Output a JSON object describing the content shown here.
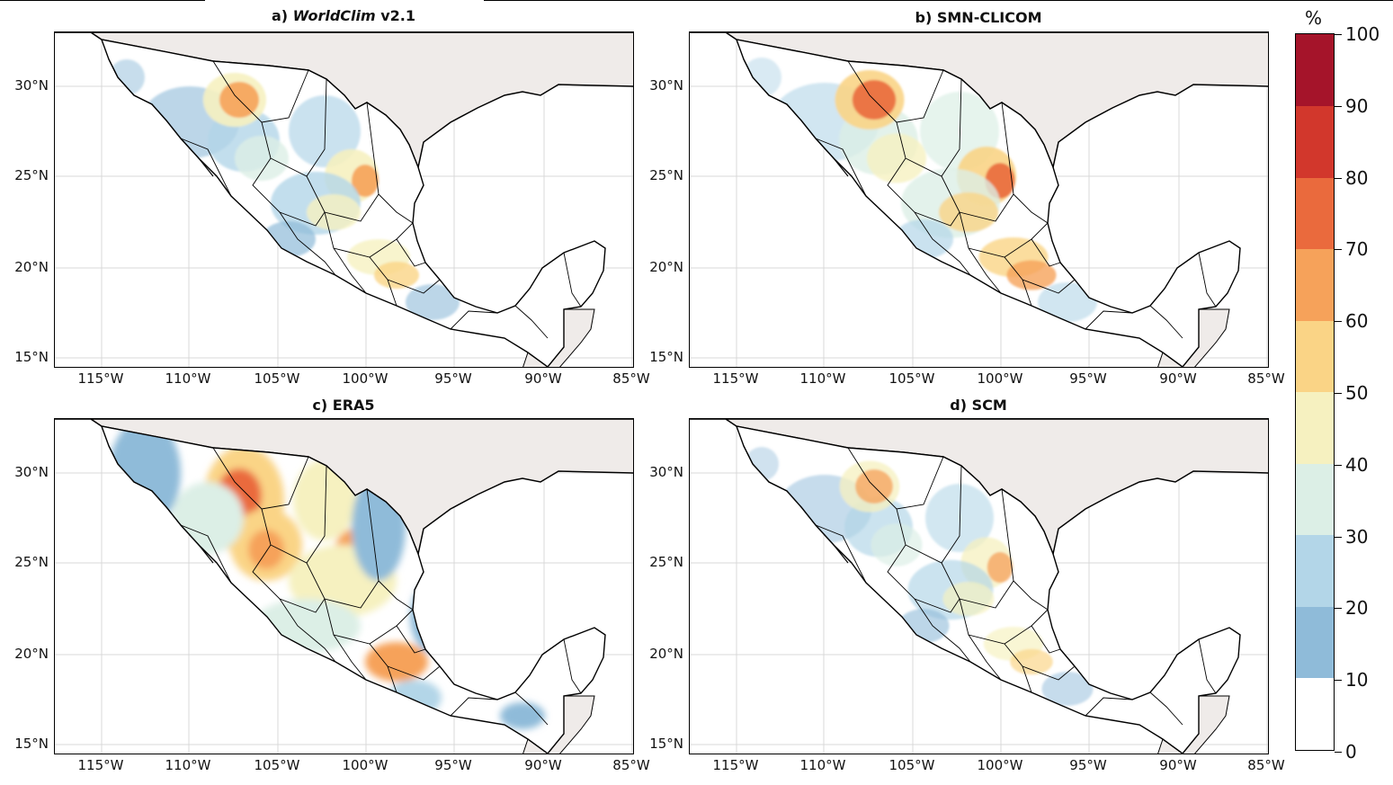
{
  "panels": [
    {
      "id": "a",
      "prefix": "a) ",
      "title_italic": "WorldClim",
      "suffix": " v2.1"
    },
    {
      "id": "b",
      "prefix": "b) SMN-CLICOM",
      "title_italic": "",
      "suffix": ""
    },
    {
      "id": "c",
      "prefix": "c) ERA5",
      "title_italic": "",
      "suffix": ""
    },
    {
      "id": "d",
      "prefix": "d) SCM",
      "title_italic": "",
      "suffix": ""
    }
  ],
  "lat_labels": [
    "30°N",
    "25°N",
    "20°N",
    "15°N"
  ],
  "lon_labels": [
    "115°W",
    "110°W",
    "105°W",
    "100°W",
    "95°W",
    "90°W",
    "85°W"
  ],
  "colorbar": {
    "unit": "%",
    "ticks": [
      "100",
      "90",
      "80",
      "70",
      "60",
      "50",
      "40",
      "30",
      "20",
      "10",
      "0"
    ],
    "colors": [
      "#ffffff",
      "#8fbbd9",
      "#b3d6e8",
      "#dcefe6",
      "#f6f1c0",
      "#fad486",
      "#f6a25a",
      "#ea6a3d",
      "#d2372c",
      "#a5142a"
    ]
  },
  "map_colors": {
    "land": "#ffffff",
    "ocean": "#ffffff",
    "usa": "#efebe9",
    "border": "#000000",
    "grid": "#d8d8d8"
  }
}
